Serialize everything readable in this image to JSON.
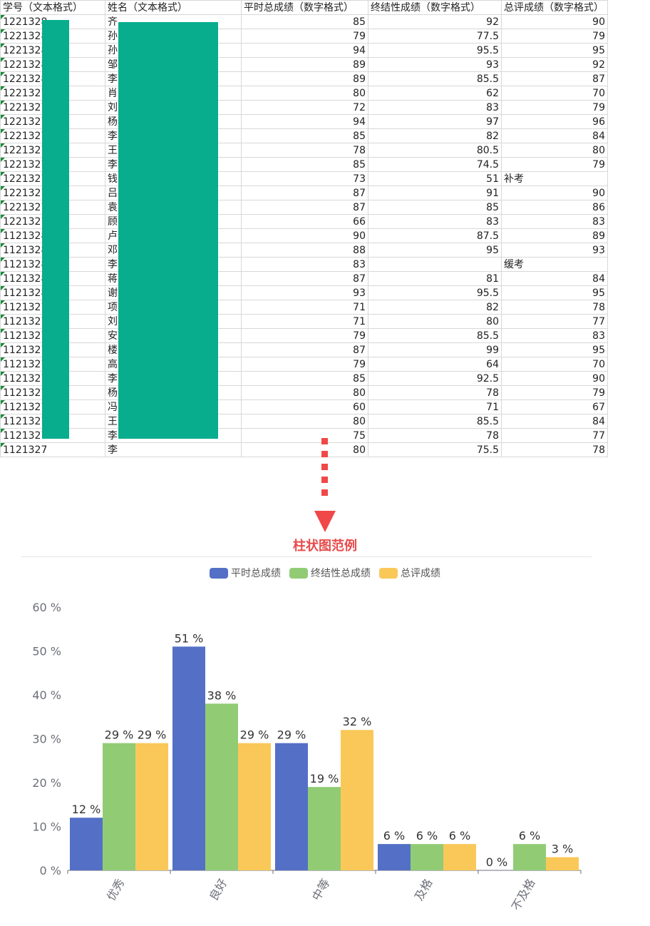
{
  "sheet": {
    "headers": [
      "学号（文本格式）",
      "姓名（文本格式）",
      "平时总成绩（数字格式）",
      "终结性成绩（数字格式）",
      "总评成绩（数字格式）"
    ],
    "rows": [
      {
        "id": "1221328",
        "name": "齐",
        "usual": "85",
        "final": "92",
        "total": "90"
      },
      {
        "id": "1221328",
        "name": "孙",
        "usual": "79",
        "final": "77.5",
        "total": "79"
      },
      {
        "id": "1221328",
        "name": "孙",
        "usual": "94",
        "final": "95.5",
        "total": "95"
      },
      {
        "id": "1221328",
        "name": "邹",
        "usual": "89",
        "final": "93",
        "total": "92"
      },
      {
        "id": "1221328",
        "name": "李",
        "usual": "89",
        "final": "85.5",
        "total": "87"
      },
      {
        "id": "1221327",
        "name": "肖",
        "usual": "80",
        "final": "62",
        "total": "70"
      },
      {
        "id": "1221327",
        "name": "刘",
        "usual": "72",
        "final": "83",
        "total": "79"
      },
      {
        "id": "1221327",
        "name": "杨",
        "usual": "94",
        "final": "97",
        "total": "96"
      },
      {
        "id": "1221327",
        "name": "李",
        "usual": "85",
        "final": "82",
        "total": "84"
      },
      {
        "id": "1221327",
        "name": "王",
        "usual": "78",
        "final": "80.5",
        "total": "80"
      },
      {
        "id": "1221327",
        "name": "李",
        "usual": "85",
        "final": "74.5",
        "total": "79"
      },
      {
        "id": "1221327",
        "name": "钱",
        "usual": "73",
        "final": "51",
        "total": "补考"
      },
      {
        "id": "1221327",
        "name": "吕",
        "usual": "87",
        "final": "91",
        "total": "90"
      },
      {
        "id": "1221327",
        "name": "袁",
        "usual": "87",
        "final": "85",
        "total": "86"
      },
      {
        "id": "1221327",
        "name": "顾",
        "usual": "66",
        "final": "83",
        "total": "83"
      },
      {
        "id": "1121328",
        "name": "卢",
        "usual": "90",
        "final": "87.5",
        "total": "89"
      },
      {
        "id": "1121328",
        "name": "邓",
        "usual": "88",
        "final": "95",
        "total": "93"
      },
      {
        "id": "1121328",
        "name": "李",
        "usual": "83",
        "final": "",
        "total": "缓考"
      },
      {
        "id": "1121328",
        "name": "蒋",
        "usual": "87",
        "final": "81",
        "total": "84"
      },
      {
        "id": "1121328",
        "name": "谢",
        "usual": "93",
        "final": "95.5",
        "total": "95"
      },
      {
        "id": "1121327",
        "name": "项",
        "usual": "71",
        "final": "82",
        "total": "78"
      },
      {
        "id": "1121327",
        "name": "刘",
        "usual": "71",
        "final": "80",
        "total": "77"
      },
      {
        "id": "1121327",
        "name": "安",
        "usual": "79",
        "final": "85.5",
        "total": "83"
      },
      {
        "id": "1121327",
        "name": "楼",
        "usual": "87",
        "final": "99",
        "total": "95"
      },
      {
        "id": "1121327",
        "name": "高",
        "usual": "79",
        "final": "64",
        "total": "70"
      },
      {
        "id": "1121327",
        "name": "李",
        "usual": "85",
        "final": "92.5",
        "total": "90"
      },
      {
        "id": "1121327",
        "name": "杨",
        "usual": "80",
        "final": "78",
        "total": "79"
      },
      {
        "id": "1121327",
        "name": "冯",
        "usual": "60",
        "final": "71",
        "total": "67"
      },
      {
        "id": "1121327",
        "name": "王",
        "usual": "80",
        "final": "85.5",
        "total": "84"
      },
      {
        "id": "1121327",
        "name": "李",
        "usual": "75",
        "final": "78",
        "total": "77"
      },
      {
        "id": "1121327",
        "name": "李",
        "usual": "80",
        "final": "75.5",
        "total": "78"
      }
    ],
    "mask_color": "#07ad8d"
  },
  "arrow_color": "#f04848",
  "chart_data": {
    "type": "bar",
    "title": "柱状图范例",
    "categories": [
      "优秀",
      "良好",
      "中等",
      "及格",
      "不及格"
    ],
    "series": [
      {
        "name": "平时总成绩",
        "color": "#5470c6",
        "values": [
          12,
          51,
          29,
          6,
          0
        ]
      },
      {
        "name": "终结性总成绩",
        "color": "#91cc75",
        "values": [
          29,
          38,
          19,
          6,
          6
        ]
      },
      {
        "name": "总评成绩",
        "color": "#fac858",
        "values": [
          29,
          29,
          32,
          6,
          3
        ]
      }
    ],
    "ylim": [
      0,
      60
    ],
    "yticks": [
      0,
      10,
      20,
      30,
      40,
      50,
      60
    ],
    "tick_suffix": " %",
    "label_suffix": " %",
    "legend_position": "top",
    "grid": false
  }
}
